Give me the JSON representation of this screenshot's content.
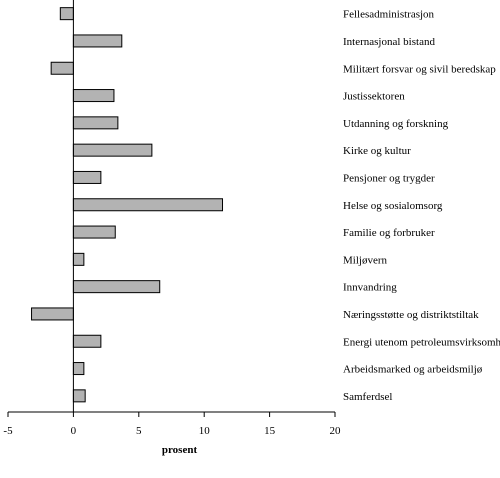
{
  "chart_data": {
    "type": "bar",
    "orientation": "horizontal",
    "categories": [
      "Fellesadministrasjon",
      "Internasjonal bistand",
      "Militært forsvar og sivil beredskap",
      "Justissektoren",
      "Utdanning og forskning",
      "Kirke og kultur",
      "Pensjoner og trygder",
      "Helse og sosialomsorg",
      "Familie og forbruker",
      "Miljøvern",
      "Innvandring",
      "Næringsstøtte og distriktstiltak",
      "Energi utenom petroleumsvirksomhet",
      "Arbeidsmarked og arbeidsmiljø",
      "Samferdsel"
    ],
    "values": [
      -1.0,
      3.7,
      -1.7,
      3.1,
      3.4,
      6.0,
      2.1,
      11.4,
      3.2,
      0.8,
      6.6,
      -3.2,
      2.1,
      0.8,
      0.9
    ],
    "title": "",
    "xlabel": "prosent",
    "ylabel": "",
    "xlim": [
      -5,
      20
    ],
    "xticks": [
      "-5",
      "0",
      "5",
      "10",
      "15",
      "20"
    ],
    "grid": false,
    "bar_color": "#b3b3b3",
    "bar_edge_color": "#000000"
  }
}
